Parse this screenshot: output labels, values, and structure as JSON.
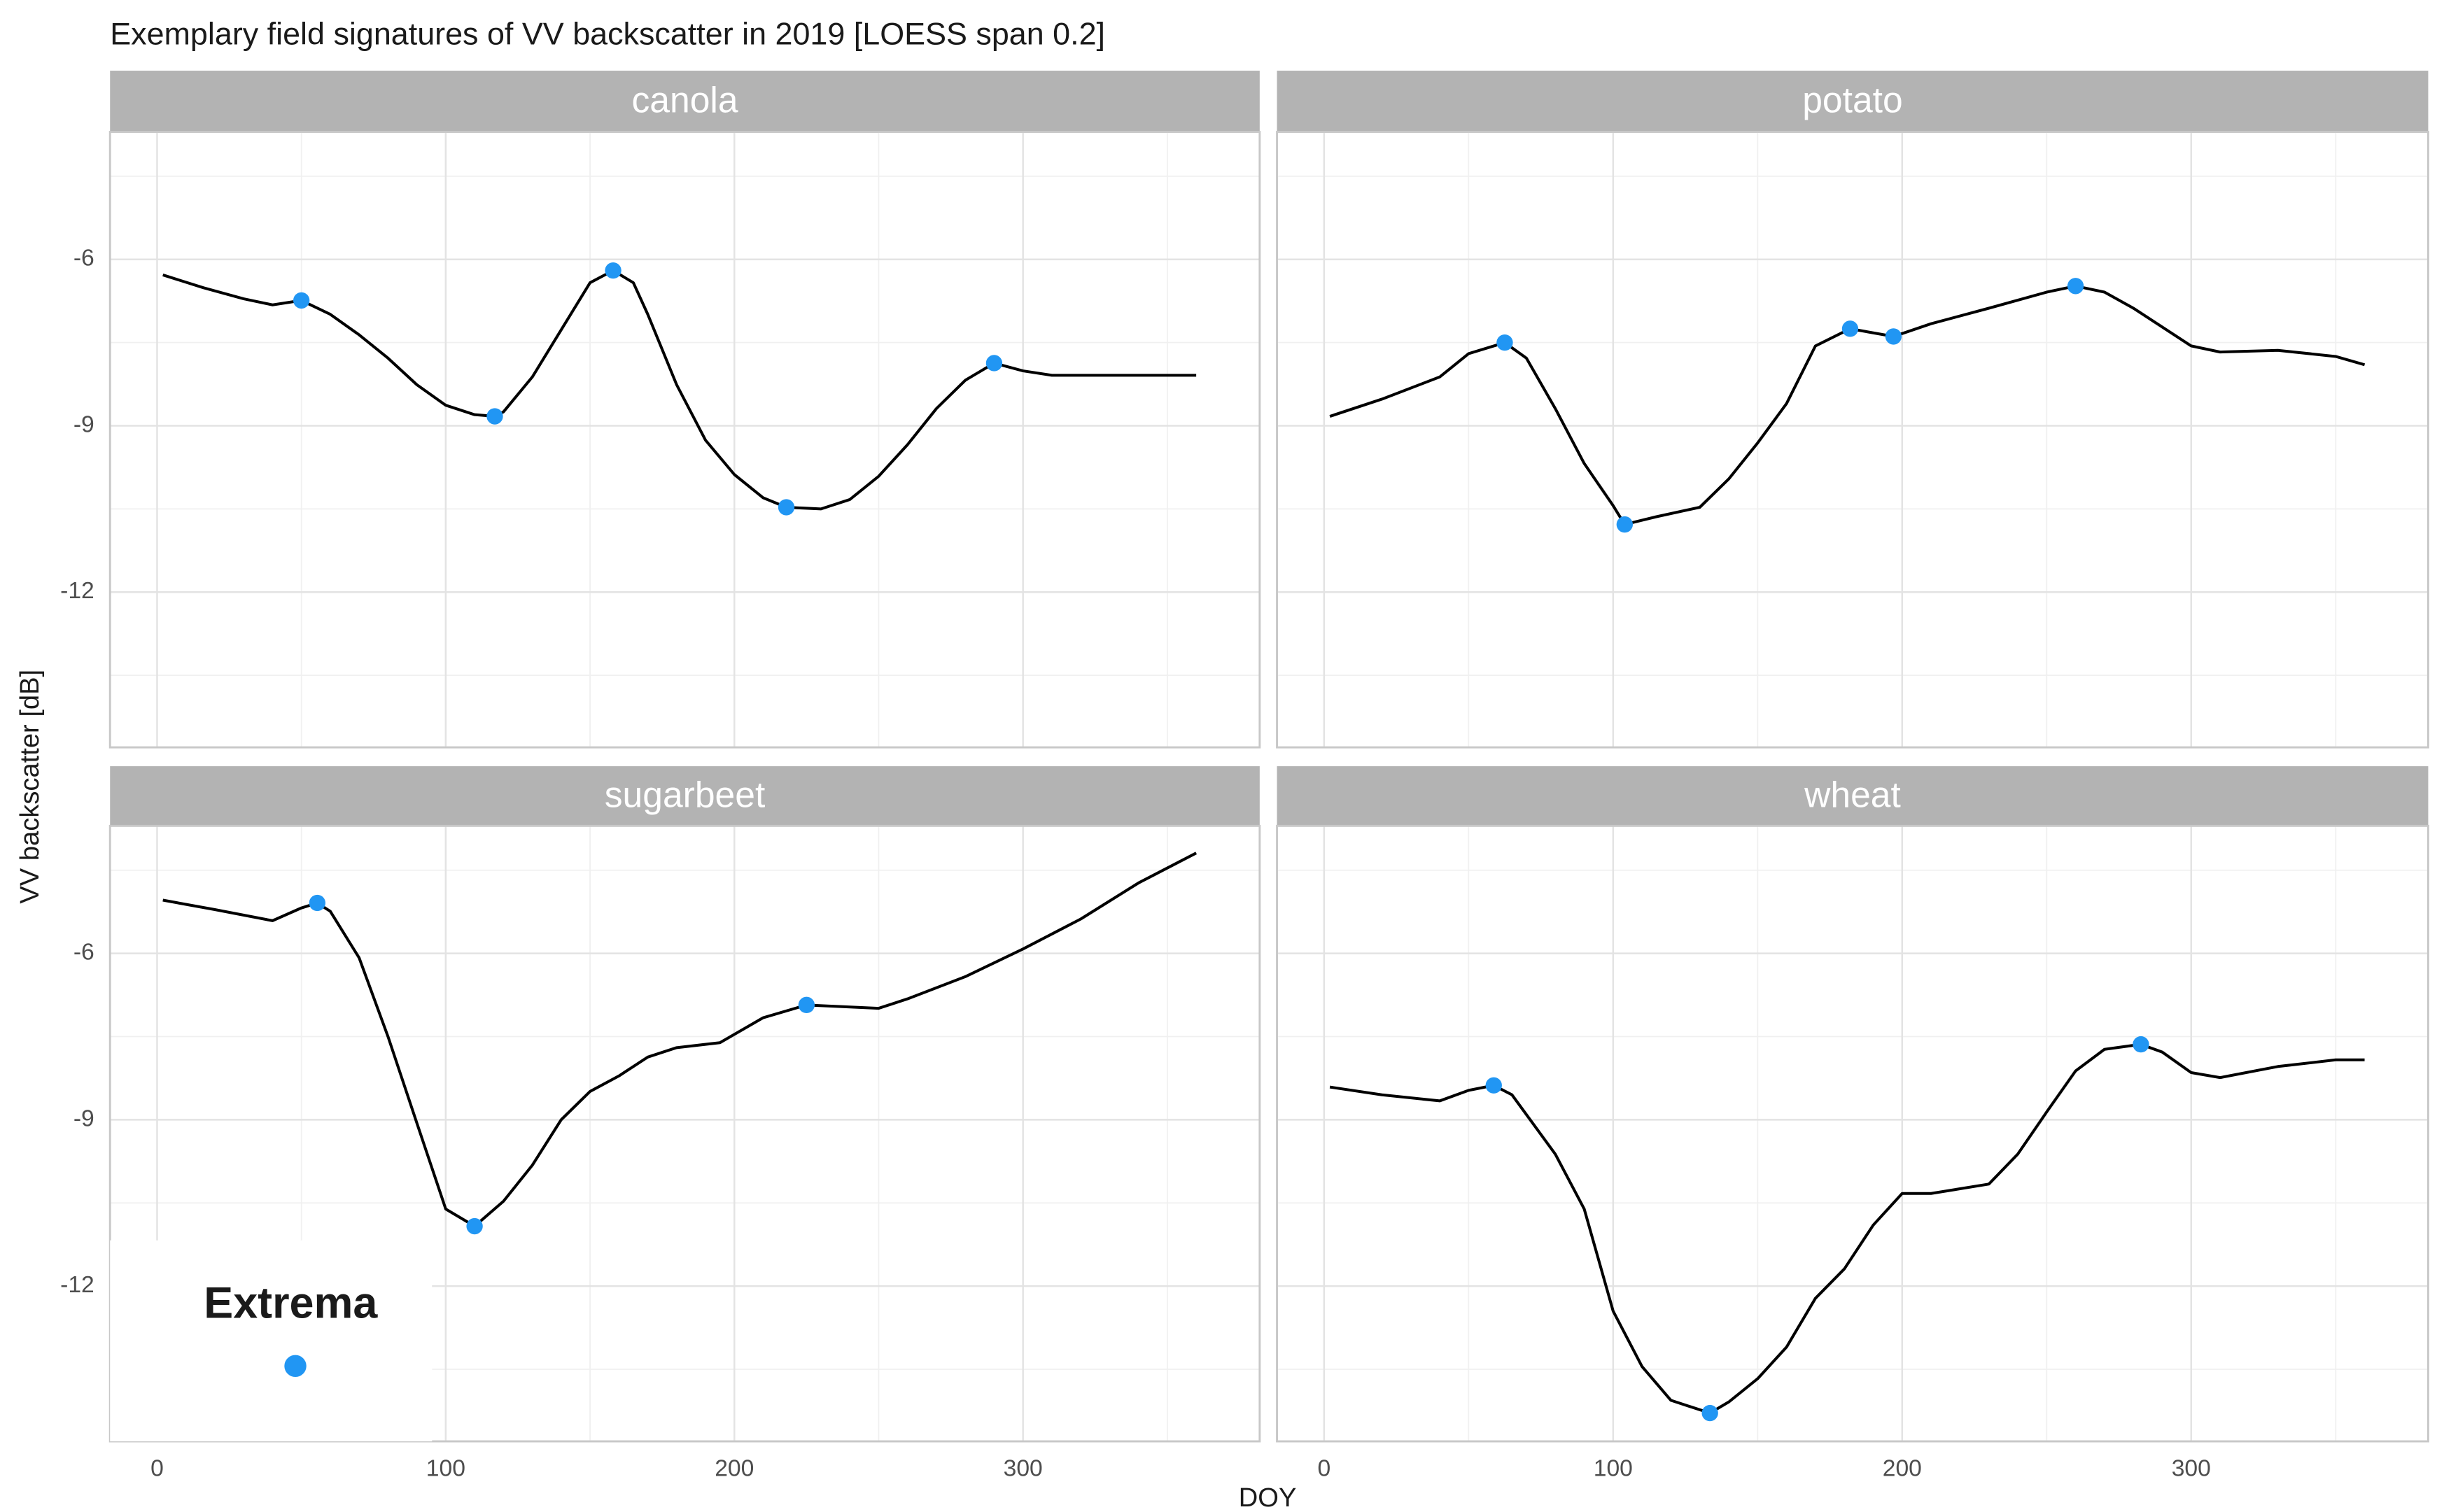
{
  "chart_data": {
    "type": "line",
    "title": "Exemplary field signatures of VV backscatter in 2019 [LOESS span 0.2]",
    "x_label": "DOY",
    "y_label": "VV backscatter [dB]",
    "xlim": [
      -16.3,
      382
    ],
    "ylim": [
      -14.8,
      -3.7
    ],
    "xticks": [
      0,
      100,
      200,
      300
    ],
    "yticks": [
      -12,
      -9,
      -6
    ],
    "x_minor_ticks": [
      50,
      150,
      250,
      350
    ],
    "y_minor_ticks": [
      -13.5,
      -10.5,
      -7.5,
      -4.5
    ],
    "grid": true,
    "line_color": "#000000",
    "extrema_color": "#2196f3",
    "legend": {
      "title": "Extrema",
      "position": "bottom-left"
    },
    "panels": [
      {
        "title": "canola",
        "x": [
          2,
          16,
          30,
          40,
          50,
          60,
          70,
          80,
          90,
          100,
          110,
          117,
          120,
          130,
          140,
          150,
          158,
          165,
          170,
          180,
          190,
          200,
          210,
          218,
          230,
          240,
          250,
          260,
          270,
          280,
          290,
          300,
          310,
          330,
          360
        ],
        "values": [
          -6.28,
          -6.51,
          -6.71,
          -6.82,
          -6.74,
          -6.99,
          -7.36,
          -7.78,
          -8.26,
          -8.63,
          -8.8,
          -8.83,
          -8.75,
          -8.12,
          -7.27,
          -6.42,
          -6.2,
          -6.42,
          -6.99,
          -8.26,
          -9.26,
          -9.88,
          -10.3,
          -10.47,
          -10.5,
          -10.33,
          -9.91,
          -9.34,
          -8.69,
          -8.18,
          -7.87,
          -8.01,
          -8.09,
          -8.09,
          -8.09
        ],
        "extrema_x": [
          50,
          117,
          158,
          218,
          290
        ],
        "extrema_values": [
          -6.74,
          -8.83,
          -6.2,
          -10.47,
          -7.87
        ]
      },
      {
        "title": "potato",
        "x": [
          2,
          20,
          40,
          50,
          62.5,
          70,
          80,
          90,
          100,
          104,
          115,
          130,
          140,
          150,
          160,
          170,
          182,
          197,
          210,
          230,
          250,
          260,
          270,
          280,
          290,
          300,
          310,
          330,
          350,
          360
        ],
        "values": [
          -8.83,
          -8.52,
          -8.12,
          -7.7,
          -7.5,
          -7.78,
          -8.69,
          -9.68,
          -10.44,
          -10.78,
          -10.64,
          -10.47,
          -9.96,
          -9.31,
          -8.6,
          -7.56,
          -7.25,
          -7.39,
          -7.16,
          -6.88,
          -6.59,
          -6.48,
          -6.59,
          -6.88,
          -7.22,
          -7.56,
          -7.67,
          -7.64,
          -7.75,
          -7.9
        ],
        "extrema_x": [
          62.5,
          104,
          182,
          197,
          260
        ],
        "extrema_values": [
          -7.5,
          -10.78,
          -7.25,
          -7.39,
          -6.48
        ]
      },
      {
        "title": "sugarbeet",
        "x": [
          2,
          20,
          40,
          50,
          55.5,
          60,
          70,
          80,
          90,
          100,
          110,
          120,
          130,
          140,
          150,
          160,
          170,
          180,
          195,
          210,
          225,
          250,
          260,
          280,
          300,
          320,
          340,
          360
        ],
        "values": [
          -5.04,
          -5.21,
          -5.41,
          -5.18,
          -5.09,
          -5.24,
          -6.08,
          -7.5,
          -9.06,
          -10.61,
          -10.92,
          -10.47,
          -9.82,
          -9.0,
          -8.49,
          -8.21,
          -7.87,
          -7.7,
          -7.61,
          -7.16,
          -6.93,
          -6.99,
          -6.82,
          -6.42,
          -5.92,
          -5.38,
          -4.73,
          -4.19
        ],
        "extrema_x": [
          55.5,
          110,
          225
        ],
        "extrema_values": [
          -5.09,
          -10.92,
          -6.93
        ]
      },
      {
        "title": "wheat",
        "x": [
          2,
          20,
          40,
          50,
          58.7,
          65,
          80,
          90,
          100,
          110,
          120,
          133.5,
          140,
          150,
          160,
          170,
          180,
          190,
          200,
          210,
          230,
          240,
          250,
          260,
          270,
          282.6,
          290,
          300,
          310,
          330,
          350,
          360
        ],
        "values": [
          -8.41,
          -8.55,
          -8.66,
          -8.47,
          -8.38,
          -8.55,
          -9.62,
          -10.61,
          -12.45,
          -13.45,
          -14.06,
          -14.29,
          -14.09,
          -13.67,
          -13.1,
          -12.22,
          -11.69,
          -10.9,
          -10.33,
          -10.33,
          -10.16,
          -9.62,
          -8.86,
          -8.12,
          -7.73,
          -7.64,
          -7.78,
          -8.15,
          -8.24,
          -8.04,
          -7.92,
          -7.92
        ],
        "extrema_x": [
          58.7,
          133.5,
          282.6
        ],
        "extrema_values": [
          -8.38,
          -14.29,
          -7.64
        ]
      }
    ]
  }
}
